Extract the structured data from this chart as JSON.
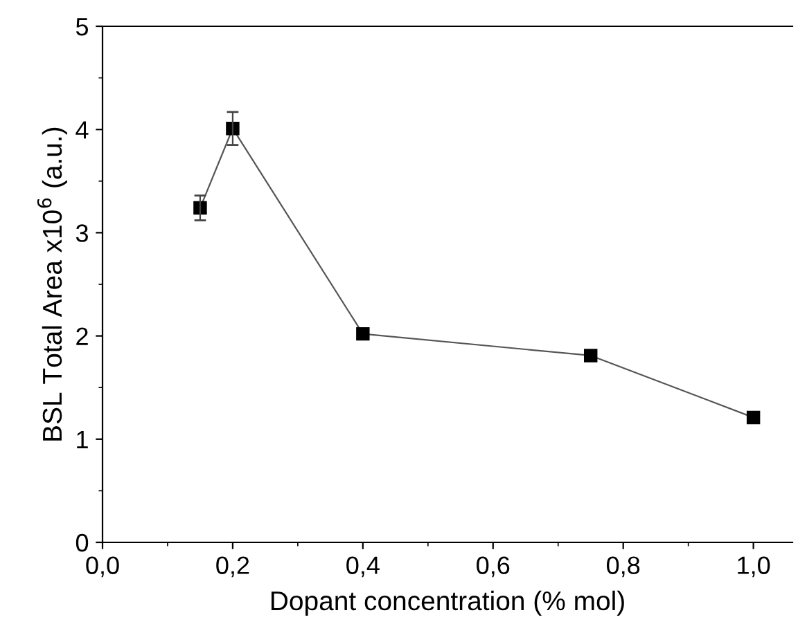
{
  "chart_data": {
    "type": "line",
    "xlabel": "Dopant concentration (% mol)",
    "ylabel": "BSL Total Area x10$^{6}$ (a.u.)",
    "x": [
      0.15,
      0.2,
      0.4,
      0.75,
      1.0
    ],
    "series": [
      {
        "color": "#000000",
        "values": [
          3.24,
          4.01,
          2.02,
          1.81,
          1.21
        ],
        "errors": [
          0.12,
          0.16,
          null,
          null,
          null
        ]
      }
    ],
    "xlim": [
      0,
      1.06
    ],
    "ylim": [
      0,
      5
    ],
    "xticks": [
      {
        "value": 0,
        "label": "0,0"
      },
      {
        "value": 0.2,
        "label": "0,2"
      },
      {
        "value": 0.4,
        "label": "0,4"
      },
      {
        "value": 0.6,
        "label": "0,6"
      },
      {
        "value": 0.8,
        "label": "0,8"
      },
      {
        "value": 1.0,
        "label": "1,0"
      }
    ],
    "yticks": [
      0,
      1,
      2,
      3,
      4,
      5
    ],
    "marker": "square",
    "line_style": "solid",
    "grid": false,
    "legend": false
  }
}
